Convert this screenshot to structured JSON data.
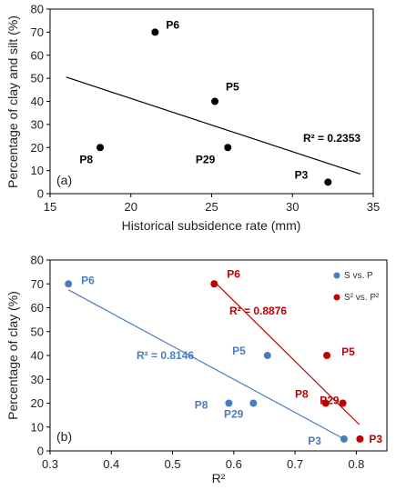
{
  "chart_data": [
    {
      "type": "scatter",
      "panel_label": "(a)",
      "xlabel": "Historical subsidence rate (mm)",
      "ylabel": "Percentage of clay and silt (%)",
      "xlim": [
        15,
        35
      ],
      "ylim": [
        0,
        80
      ],
      "xticks": [
        "15",
        "20",
        "25",
        "30",
        "35"
      ],
      "yticks": [
        "0",
        "10",
        "20",
        "30",
        "40",
        "50",
        "60",
        "70",
        "80"
      ],
      "grid": false,
      "series": [
        {
          "color": "#000000",
          "points": [
            {
              "label": "P6",
              "x": 21.5,
              "y": 70
            },
            {
              "label": "P5",
              "x": 25.2,
              "y": 40
            },
            {
              "label": "P8",
              "x": 18.1,
              "y": 20
            },
            {
              "label": "P29",
              "x": 26.0,
              "y": 20
            },
            {
              "label": "P3",
              "x": 32.2,
              "y": 5
            }
          ],
          "trendline": {
            "x": [
              16,
              34.2
            ],
            "y": [
              50.5,
              8.5
            ]
          },
          "r2_label": "R² = 0.2353"
        }
      ]
    },
    {
      "type": "scatter",
      "panel_label": "(b)",
      "xlabel": "R²",
      "ylabel": "Percentage of clay (%)",
      "xlim": [
        0.3,
        0.85
      ],
      "ylim": [
        0,
        80
      ],
      "xticks": [
        "0.3",
        "0.4",
        "0.5",
        "0.6",
        "0.7",
        "0.8"
      ],
      "yticks": [
        "0",
        "10",
        "20",
        "30",
        "40",
        "50",
        "60",
        "70",
        "80"
      ],
      "grid": false,
      "legend": {
        "placement": "top-right",
        "entries": [
          {
            "label": "S vs. P",
            "color": "#4a7ebb"
          },
          {
            "label": "S² vs. P²",
            "color": "#c00000"
          }
        ]
      },
      "series": [
        {
          "name": "S vs. P",
          "color": "#4a7ebb",
          "points": [
            {
              "label": "P6",
              "x": 0.33,
              "y": 70
            },
            {
              "label": "P5",
              "x": 0.655,
              "y": 40
            },
            {
              "label": "P8",
              "x": 0.592,
              "y": 20
            },
            {
              "label": "P29",
              "x": 0.632,
              "y": 20
            },
            {
              "label": "P3",
              "x": 0.78,
              "y": 5
            }
          ],
          "trendline": {
            "x": [
              0.33,
              0.78
            ],
            "y": [
              67.5,
              5
            ]
          },
          "r2_label": "R² = 0.8146"
        },
        {
          "name": "S² vs. P²",
          "color": "#c00000",
          "points": [
            {
              "label": "P6",
              "x": 0.568,
              "y": 70
            },
            {
              "label": "P5",
              "x": 0.752,
              "y": 40
            },
            {
              "label": "P8",
              "x": 0.75,
              "y": 20
            },
            {
              "label": "P29",
              "x": 0.778,
              "y": 20
            },
            {
              "label": "P3",
              "x": 0.806,
              "y": 5
            }
          ],
          "trendline": {
            "x": [
              0.568,
              0.805
            ],
            "y": [
              71,
              11
            ]
          },
          "r2_label": "R² = 0.8876"
        }
      ]
    }
  ]
}
